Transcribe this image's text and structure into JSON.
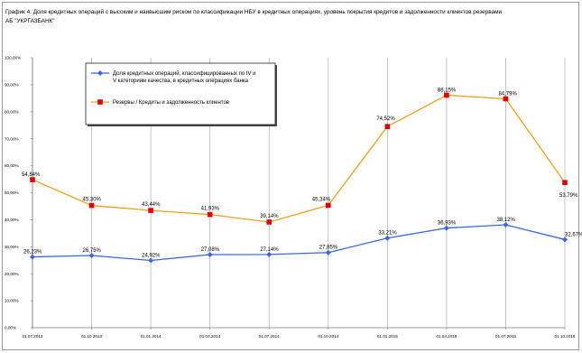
{
  "chart_data": {
    "type": "line",
    "title": "График 4. Доля кредитных операций с высоким и наивысшим риском по классификации НБУ в кредитных операциях, уровень покрытия кредитов и задолженности клиентов резервами АБ \"УКРГАЗБАНК\"",
    "categories": [
      "01.07.2013",
      "01.10.2013",
      "01.01.2014",
      "01.04.2014",
      "01.07.2014",
      "01.10.2014",
      "01.01.2015",
      "01.04.2015",
      "01.07.2015",
      "01.10.2015"
    ],
    "y_ticks": [
      "0,00%",
      "10,00%",
      "20,00%",
      "30,00%",
      "40,00%",
      "50,00%",
      "60,00%",
      "70,00%",
      "80,00%",
      "90,00%",
      "100,00%"
    ],
    "ylim": [
      0,
      100
    ],
    "grid": "vertical",
    "legend_position": "inside-top-left",
    "series": [
      {
        "name": "Доля кредитных операций, классифицированных по  IV и V категориям качества, в кредитных операциях банка",
        "color": "#3a66e0",
        "marker": "diamond",
        "values": [
          26.23,
          26.75,
          24.92,
          27.08,
          27.14,
          27.85,
          33.21,
          36.93,
          38.12,
          32.67
        ],
        "labels": [
          "26,23%",
          "26,75%",
          "24,92%",
          "27,08%",
          "27,14%",
          "27,85%",
          "33,21%",
          "36,93%",
          "38,12%",
          "32,67%"
        ]
      },
      {
        "name": "Резервы / Кредиты и задолженность клиентов",
        "color": "#f0a020",
        "marker_color": "#e00000",
        "marker": "square",
        "values": [
          54.84,
          45.3,
          43.44,
          41.93,
          39.14,
          45.34,
          74.52,
          86.15,
          84.79,
          53.79
        ],
        "labels": [
          "54,84%",
          "45,30%",
          "43,44%",
          "41,93%",
          "39,14%",
          "45,34%",
          "74,52%",
          "86,15%",
          "84,79%",
          "53,79%"
        ]
      }
    ]
  }
}
